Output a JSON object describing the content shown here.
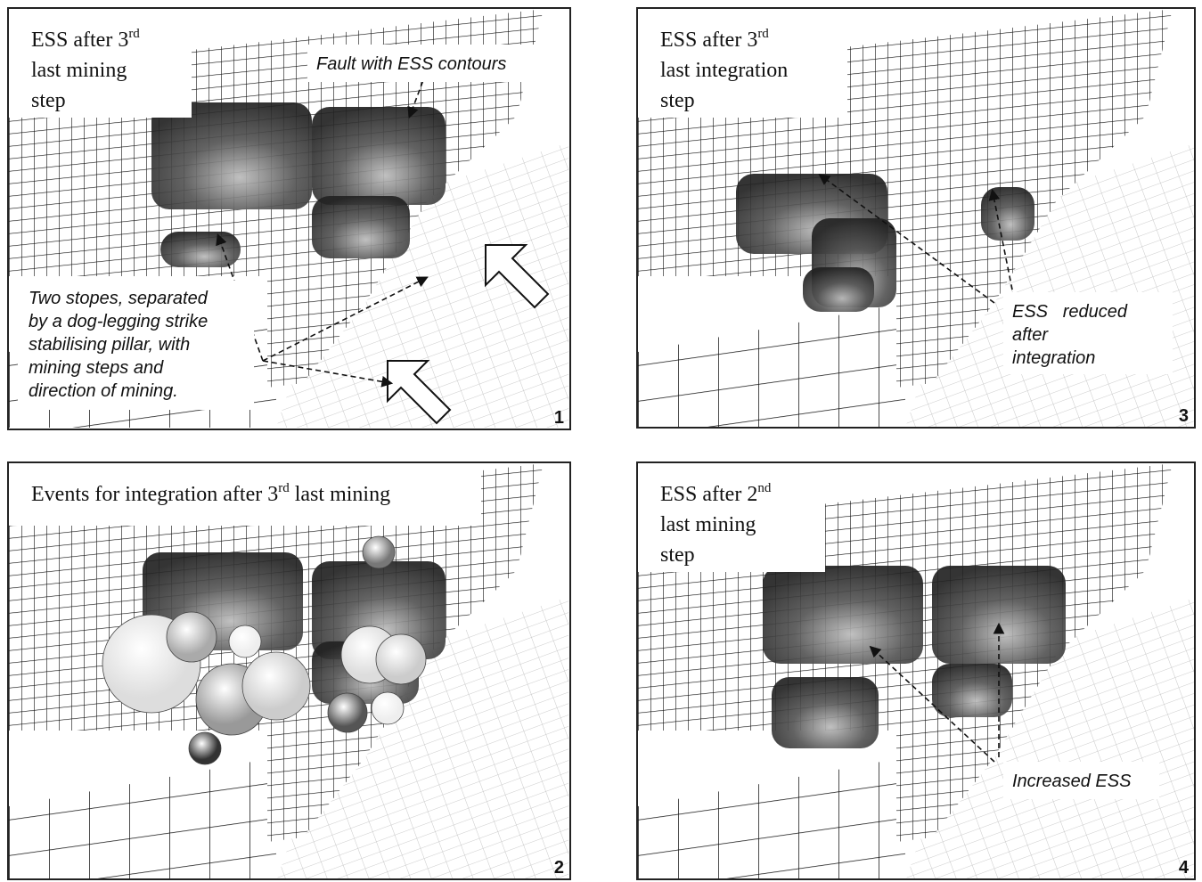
{
  "panels": [
    {
      "number": "1",
      "title_lines": [
        {
          "text": "ESS after 3",
          "sup": "rd"
        },
        {
          "text": "last mining"
        },
        {
          "text": "step"
        }
      ],
      "annotations": [
        {
          "lines": [
            "Fault with ESS contours"
          ]
        },
        {
          "lines": [
            "Two stopes, separated",
            "by a dog-legging strike",
            "stabilising pillar, with",
            "mining steps and",
            "direction of mining."
          ]
        }
      ]
    },
    {
      "number": "2",
      "title_lines": [
        {
          "text": "Events for integration after 3",
          "sup": "rd",
          "after": " last mining"
        }
      ],
      "annotations": []
    },
    {
      "number": "3",
      "title_lines": [
        {
          "text": "ESS after 3",
          "sup": "rd"
        },
        {
          "text": "last integration"
        },
        {
          "text": "step"
        }
      ],
      "annotations": [
        {
          "lines": [
            "ESS   reduced",
            "after",
            "integration"
          ]
        }
      ]
    },
    {
      "number": "4",
      "title_lines": [
        {
          "text": "ESS after 2",
          "sup": "nd"
        },
        {
          "text": "last mining"
        },
        {
          "text": "step"
        }
      ],
      "annotations": [
        {
          "lines": [
            "Increased ESS"
          ]
        }
      ]
    }
  ]
}
